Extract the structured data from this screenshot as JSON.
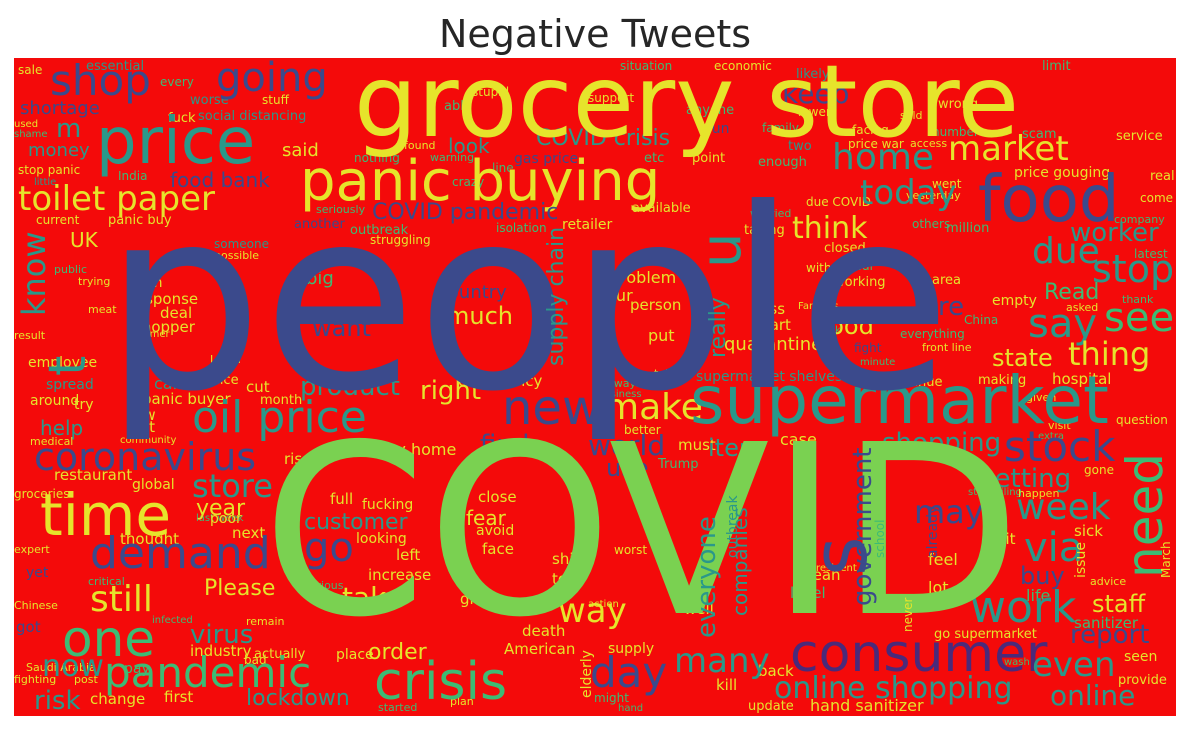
{
  "title": "Negative Tweets",
  "palette": {
    "background": "#f40a0a",
    "yellow": "#e6e42b",
    "green": "#7ad151",
    "teal": "#2a988a",
    "lightgreen": "#3dbb74",
    "navy": "#3b4a8c",
    "purple": "#4a2a7a"
  },
  "words": {
    "people": "people",
    "covid": "COVID",
    "grocery_store": "grocery store",
    "price": "price",
    "panic_buying": "panic buying",
    "supermarket": "supermarket",
    "food": "food",
    "consumer": "consumer",
    "pandemic": "pandemic",
    "crisis": "crisis",
    "oil_price": "oil price",
    "time": "time",
    "demand": "demand",
    "one": "one",
    "new": "new",
    "need": "need",
    "toilet_paper": "toilet paper",
    "shop": "shop",
    "going": "going",
    "home": "home",
    "market": "market",
    "coronavirus": "coronavirus",
    "stock": "stock",
    "stop": "stop",
    "say": "say",
    "see": "see",
    "week": "week",
    "work": "work",
    "day": "day",
    "many": "many",
    "still": "still",
    "store": "store",
    "online_shopping": "online shopping",
    "online": "online",
    "even": "even",
    "via": "via",
    "make": "make",
    "take": "take",
    "go": "go",
    "s": "s",
    "u": "u",
    "t": "t",
    "know": "know",
    "due": "due",
    "think": "think",
    "today": "today",
    "keep": "keep",
    "covid_crisis": "COVID crisis",
    "covid_pandemic": "COVID pandemic",
    "food_bank": "food bank",
    "shortage": "shortage",
    "money": "money",
    "uk": "UK",
    "m": "m",
    "good": "good",
    "thing": "thing",
    "state": "state",
    "much": "much",
    "want": "want",
    "product": "product",
    "right": "right",
    "world": "world",
    "item": "item",
    "find": "find",
    "shopping": "shopping",
    "getting": "getting",
    "may": "may",
    "government": "government",
    "everyone": "everyone",
    "customer": "customer",
    "year": "year",
    "fear": "fear",
    "way": "way",
    "virus": "virus",
    "please": "Please",
    "now": "now",
    "risk": "risk",
    "lockdown": "lockdown",
    "order": "order",
    "staff": "staff",
    "buy": "buy",
    "life": "life",
    "report": "report",
    "worker": "worker",
    "read": "Read",
    "supply_chain": "supply chain",
    "really": "really",
    "panic_buyer": "panic buyer",
    "help": "help",
    "hand_sanitizer": "hand sanitizer",
    "quarantine": "quarantine",
    "use": "use",
    "companies": "companies",
    "said": "said",
    "look": "look",
    "re": "re",
    "stay_home": "stay home",
    "restaurant": "restaurant",
    "essential": "essential",
    "social_distancing": "social distancing",
    "situation": "situation",
    "economic": "economic",
    "limit": "limit",
    "gas_price": "gas price",
    "price_gouging": "price gouging",
    "price_war": "price war",
    "point": "point",
    "etc": "etc",
    "enough": "enough",
    "two": "two",
    "retailer": "retailer",
    "available": "available",
    "taking": "taking",
    "closed": "closed",
    "working": "working",
    "problem": "problem",
    "person": "person",
    "hour": "hour",
    "country": "country",
    "put": "put",
    "less": "less",
    "start": "start",
    "empty": "empty",
    "area": "area",
    "china": "China",
    "hospital": "hospital",
    "making": "making",
    "continue": "continue",
    "job": "job",
    "fight": "fight",
    "supermarket_shelves": "supermarket shelves",
    "emergency": "emergency",
    "call": "call",
    "police": "police",
    "cut": "cut",
    "month": "month",
    "low": "low",
    "last": "last",
    "response": "response",
    "deal": "deal",
    "shopper": "shopper",
    "high": "high",
    "big": "big",
    "employee": "employee",
    "spread": "spread",
    "around": "around",
    "try": "try",
    "medical": "medical",
    "community": "community",
    "rise": "rise",
    "global": "global",
    "thought": "thought",
    "poor": "poor",
    "next": "next",
    "looking": "looking",
    "full": "full",
    "fucking": "fucking",
    "close": "close",
    "avoid": "avoid",
    "face": "face",
    "left": "left",
    "increase": "increase",
    "told": "told",
    "shit": "shit",
    "give": "give",
    "death": "death",
    "american": "American",
    "supply": "supply",
    "kill": "kill",
    "back": "back",
    "update": "update",
    "elderly": "elderly",
    "well": "well",
    "must": "must",
    "trump": "Trump",
    "case": "case",
    "mean": "mean",
    "level": "level",
    "lot": "lot",
    "feel": "feel",
    "hit": "hit",
    "sick": "sick",
    "issue": "issue",
    "seen": "seen",
    "provide": "provide",
    "sanitizer": "sanitizer",
    "go_supermarket": "go supermarket",
    "actually": "actually",
    "place": "place",
    "industry": "industry",
    "pay": "pay",
    "first": "first",
    "change": "change",
    "got": "got",
    "yet": "yet",
    "expert": "expert",
    "chinese": "Chinese",
    "groceries": "groceries",
    "saudi_arabia": "Saudi Arabia",
    "fighting": "fighting",
    "post": "post",
    "stop_panic": "stop panic",
    "little": "little",
    "current": "current",
    "india": "India",
    "panic_buy": "panic buy",
    "someone": "someone",
    "possible": "possible",
    "public": "public",
    "trying": "trying",
    "meat": "meat",
    "result": "result",
    "farmer": "farmer",
    "learn": "Learn",
    "sale": "sale",
    "used": "used",
    "shame": "shame",
    "worse": "worse",
    "stuff": "stuff",
    "fuck": "fuck",
    "every": "every",
    "able": "able",
    "stupid": "stupid",
    "support": "support",
    "anyone": "anyone",
    "run": "run",
    "family": "family",
    "likely": "likely",
    "lower": "lower",
    "facing": "facing",
    "access": "access",
    "sold": "sold",
    "wrong": "wrong",
    "number": "number",
    "scam": "scam",
    "service": "service",
    "real": "real",
    "come": "come",
    "company": "company",
    "latest": "latest",
    "thank": "thank",
    "asked": "asked",
    "million": "million",
    "others": "others",
    "worried": "worried",
    "due_covid": "due COVID",
    "without": "without",
    "far": "far",
    "went": "went",
    "yesterday": "yesterday",
    "line": "line",
    "crazy": "crazy",
    "nothing": "nothing",
    "found": "found",
    "warning": "warning",
    "isolation": "isolation",
    "struggling": "struggling",
    "seriously": "seriously",
    "another": "another",
    "outbreak": "outbreak",
    "business": "business",
    "better": "better",
    "idiot": "idiot",
    "always": "always",
    "tell": "tell",
    "minute": "minute",
    "front_line": "front line",
    "everything": "everything",
    "families": "Families",
    "mask": "mask",
    "given": "given",
    "visit": "visit",
    "extra": "extra",
    "question": "question",
    "march": "March",
    "gone": "gone",
    "advice": "advice",
    "stockpiling": "stockpiling",
    "happen": "happen",
    "resident": "resident",
    "effect": "effect",
    "never": "never",
    "already": "already",
    "school": "school",
    "worst": "worst",
    "action": "action",
    "might": "might",
    "plan": "plan",
    "hand": "hand",
    "started": "started",
    "remain": "remain",
    "serious": "serious",
    "infected": "infected",
    "bad": "bad",
    "critical": "critical",
    "last_week": "last week",
    "wash": "wash"
  }
}
